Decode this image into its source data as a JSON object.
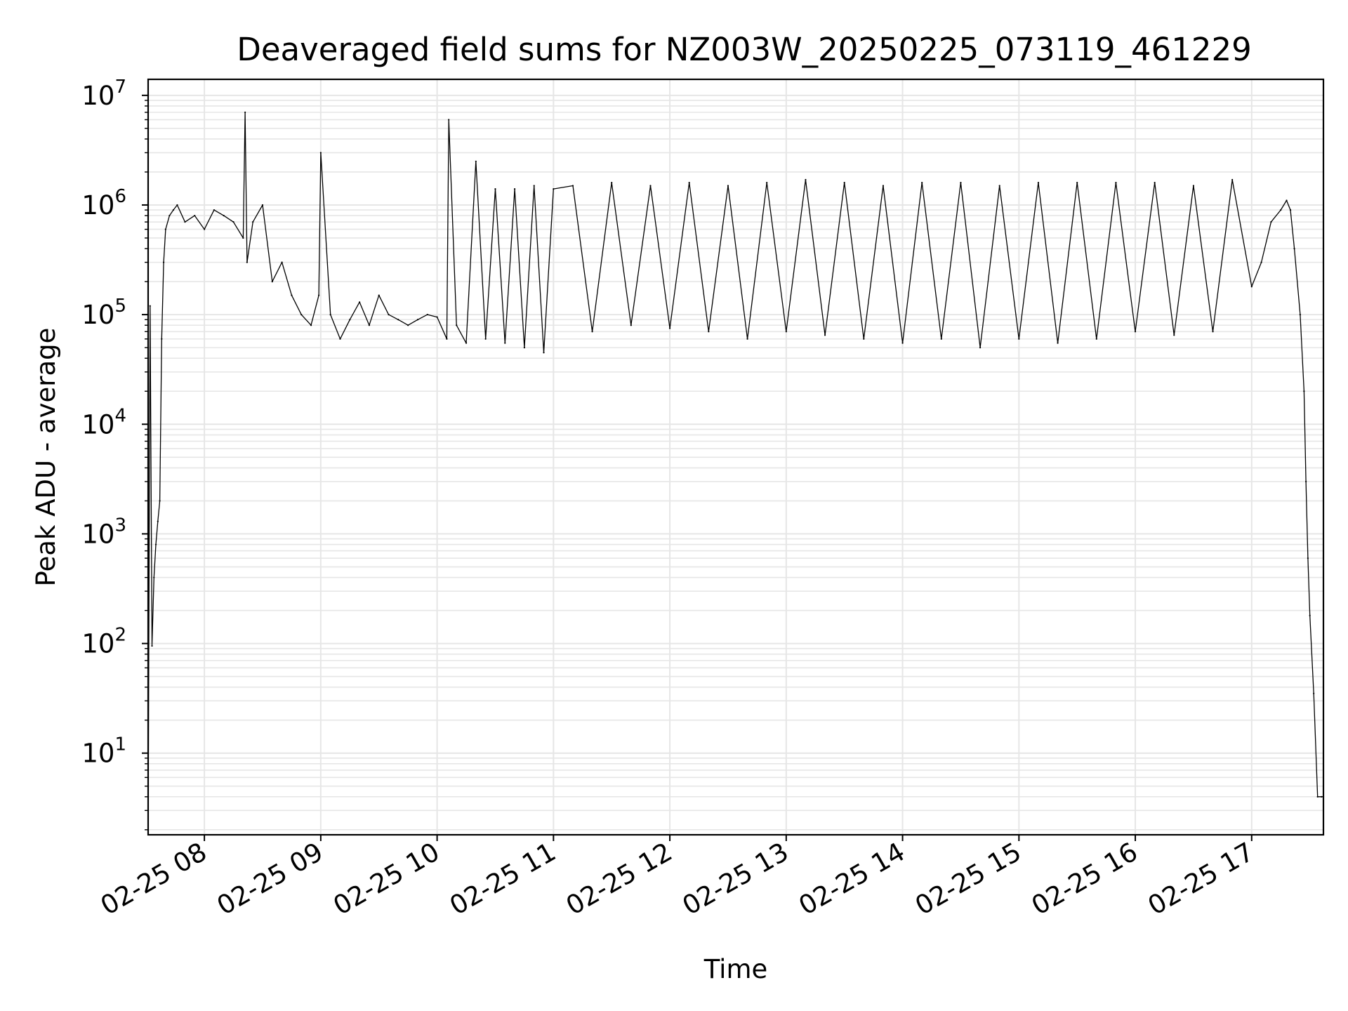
{
  "chart_data": {
    "type": "line",
    "title": "Deaveraged field sums for NZ003W_20250225_073119_461229",
    "xlabel": "Time",
    "ylabel": "Peak ADU - average",
    "yscale": "log",
    "ylim": [
      1.8,
      14000000
    ],
    "xlim": [
      "2025-02-25 07:31",
      "2025-02-25 17:37"
    ],
    "grid": true,
    "grid_which": "both",
    "line_color": "#000000",
    "grid_color": "#e6e6e6",
    "x_ticks": [
      {
        "t": "2025-02-25 08:00",
        "label": "02-25 08"
      },
      {
        "t": "2025-02-25 09:00",
        "label": "02-25 09"
      },
      {
        "t": "2025-02-25 10:00",
        "label": "02-25 10"
      },
      {
        "t": "2025-02-25 11:00",
        "label": "02-25 11"
      },
      {
        "t": "2025-02-25 12:00",
        "label": "02-25 12"
      },
      {
        "t": "2025-02-25 13:00",
        "label": "02-25 13"
      },
      {
        "t": "2025-02-25 14:00",
        "label": "02-25 14"
      },
      {
        "t": "2025-02-25 15:00",
        "label": "02-25 15"
      },
      {
        "t": "2025-02-25 16:00",
        "label": "02-25 16"
      },
      {
        "t": "2025-02-25 17:00",
        "label": "02-25 17"
      }
    ],
    "y_ticks": [
      {
        "value": 10,
        "base": "10",
        "exp": "1"
      },
      {
        "value": 100,
        "base": "10",
        "exp": "2"
      },
      {
        "value": 1000,
        "base": "10",
        "exp": "3"
      },
      {
        "value": 10000,
        "base": "10",
        "exp": "4"
      },
      {
        "value": 100000,
        "base": "10",
        "exp": "5"
      },
      {
        "value": 1000000,
        "base": "10",
        "exp": "6"
      },
      {
        "value": 10000000,
        "base": "10",
        "exp": "7"
      }
    ],
    "series": [
      {
        "x": [
          "2025-02-25 07:31",
          "2025-02-25 07:32",
          "2025-02-25 07:33",
          "2025-02-25 07:34",
          "2025-02-25 07:35",
          "2025-02-25 07:36",
          "2025-02-25 07:37",
          "2025-02-25 07:38",
          "2025-02-25 07:39",
          "2025-02-25 07:40",
          "2025-02-25 07:42",
          "2025-02-25 07:44",
          "2025-02-25 07:46",
          "2025-02-25 07:50",
          "2025-02-25 07:55",
          "2025-02-25 08:00",
          "2025-02-25 08:05",
          "2025-02-25 08:10",
          "2025-02-25 08:15",
          "2025-02-25 08:20",
          "2025-02-25 08:21",
          "2025-02-25 08:22",
          "2025-02-25 08:25",
          "2025-02-25 08:30",
          "2025-02-25 08:35",
          "2025-02-25 08:40",
          "2025-02-25 08:45",
          "2025-02-25 08:50",
          "2025-02-25 08:55",
          "2025-02-25 08:59",
          "2025-02-25 09:00",
          "2025-02-25 09:05",
          "2025-02-25 09:10",
          "2025-02-25 09:15",
          "2025-02-25 09:20",
          "2025-02-25 09:25",
          "2025-02-25 09:30",
          "2025-02-25 09:35",
          "2025-02-25 09:40",
          "2025-02-25 09:45",
          "2025-02-25 09:50",
          "2025-02-25 09:55",
          "2025-02-25 10:00",
          "2025-02-25 10:05",
          "2025-02-25 10:06",
          "2025-02-25 10:10",
          "2025-02-25 10:15",
          "2025-02-25 10:20",
          "2025-02-25 10:25",
          "2025-02-25 10:30",
          "2025-02-25 10:35",
          "2025-02-25 10:40",
          "2025-02-25 10:45",
          "2025-02-25 10:50",
          "2025-02-25 10:55",
          "2025-02-25 11:00",
          "2025-02-25 11:10",
          "2025-02-25 11:20",
          "2025-02-25 11:30",
          "2025-02-25 11:40",
          "2025-02-25 11:50",
          "2025-02-25 12:00",
          "2025-02-25 12:10",
          "2025-02-25 12:20",
          "2025-02-25 12:30",
          "2025-02-25 12:40",
          "2025-02-25 12:50",
          "2025-02-25 13:00",
          "2025-02-25 13:10",
          "2025-02-25 13:20",
          "2025-02-25 13:30",
          "2025-02-25 13:40",
          "2025-02-25 13:50",
          "2025-02-25 14:00",
          "2025-02-25 14:10",
          "2025-02-25 14:20",
          "2025-02-25 14:30",
          "2025-02-25 14:40",
          "2025-02-25 14:50",
          "2025-02-25 15:00",
          "2025-02-25 15:10",
          "2025-02-25 15:20",
          "2025-02-25 15:30",
          "2025-02-25 15:40",
          "2025-02-25 15:50",
          "2025-02-25 16:00",
          "2025-02-25 16:10",
          "2025-02-25 16:20",
          "2025-02-25 16:30",
          "2025-02-25 16:40",
          "2025-02-25 16:50",
          "2025-02-25 17:00",
          "2025-02-25 17:05",
          "2025-02-25 17:10",
          "2025-02-25 17:15",
          "2025-02-25 17:18",
          "2025-02-25 17:20",
          "2025-02-25 17:22",
          "2025-02-25 17:25",
          "2025-02-25 17:27",
          "2025-02-25 17:28",
          "2025-02-25 17:29",
          "2025-02-25 17:30",
          "2025-02-25 17:32",
          "2025-02-25 17:34",
          "2025-02-25 17:36",
          "2025-02-25 17:37"
        ],
        "y": [
          2,
          120000,
          95,
          400,
          800,
          1300,
          2000,
          60000,
          300000,
          600000,
          800000,
          900000,
          1000000,
          700000,
          800000,
          600000,
          900000,
          800000,
          700000,
          500000,
          7000000,
          300000,
          700000,
          1000000,
          200000,
          300000,
          150000,
          100000,
          80000,
          150000,
          3000000,
          100000,
          60000,
          90000,
          130000,
          80000,
          150000,
          100000,
          90000,
          80000,
          90000,
          100000,
          95000,
          60000,
          6000000,
          80000,
          55000,
          2500000,
          60000,
          1400000,
          55000,
          1400000,
          50000,
          1500000,
          45000,
          1400000,
          1500000,
          70000,
          1600000,
          80000,
          1500000,
          75000,
          1600000,
          70000,
          1500000,
          60000,
          1600000,
          70000,
          1700000,
          65000,
          1600000,
          60000,
          1500000,
          55000,
          1600000,
          60000,
          1600000,
          50000,
          1500000,
          60000,
          1600000,
          55000,
          1600000,
          60000,
          1600000,
          70000,
          1600000,
          65000,
          1500000,
          70000,
          1700000,
          180000,
          300000,
          700000,
          900000,
          1100000,
          900000,
          400000,
          100000,
          20000,
          3000,
          600,
          180,
          35,
          4,
          4,
          4
        ]
      }
    ]
  }
}
